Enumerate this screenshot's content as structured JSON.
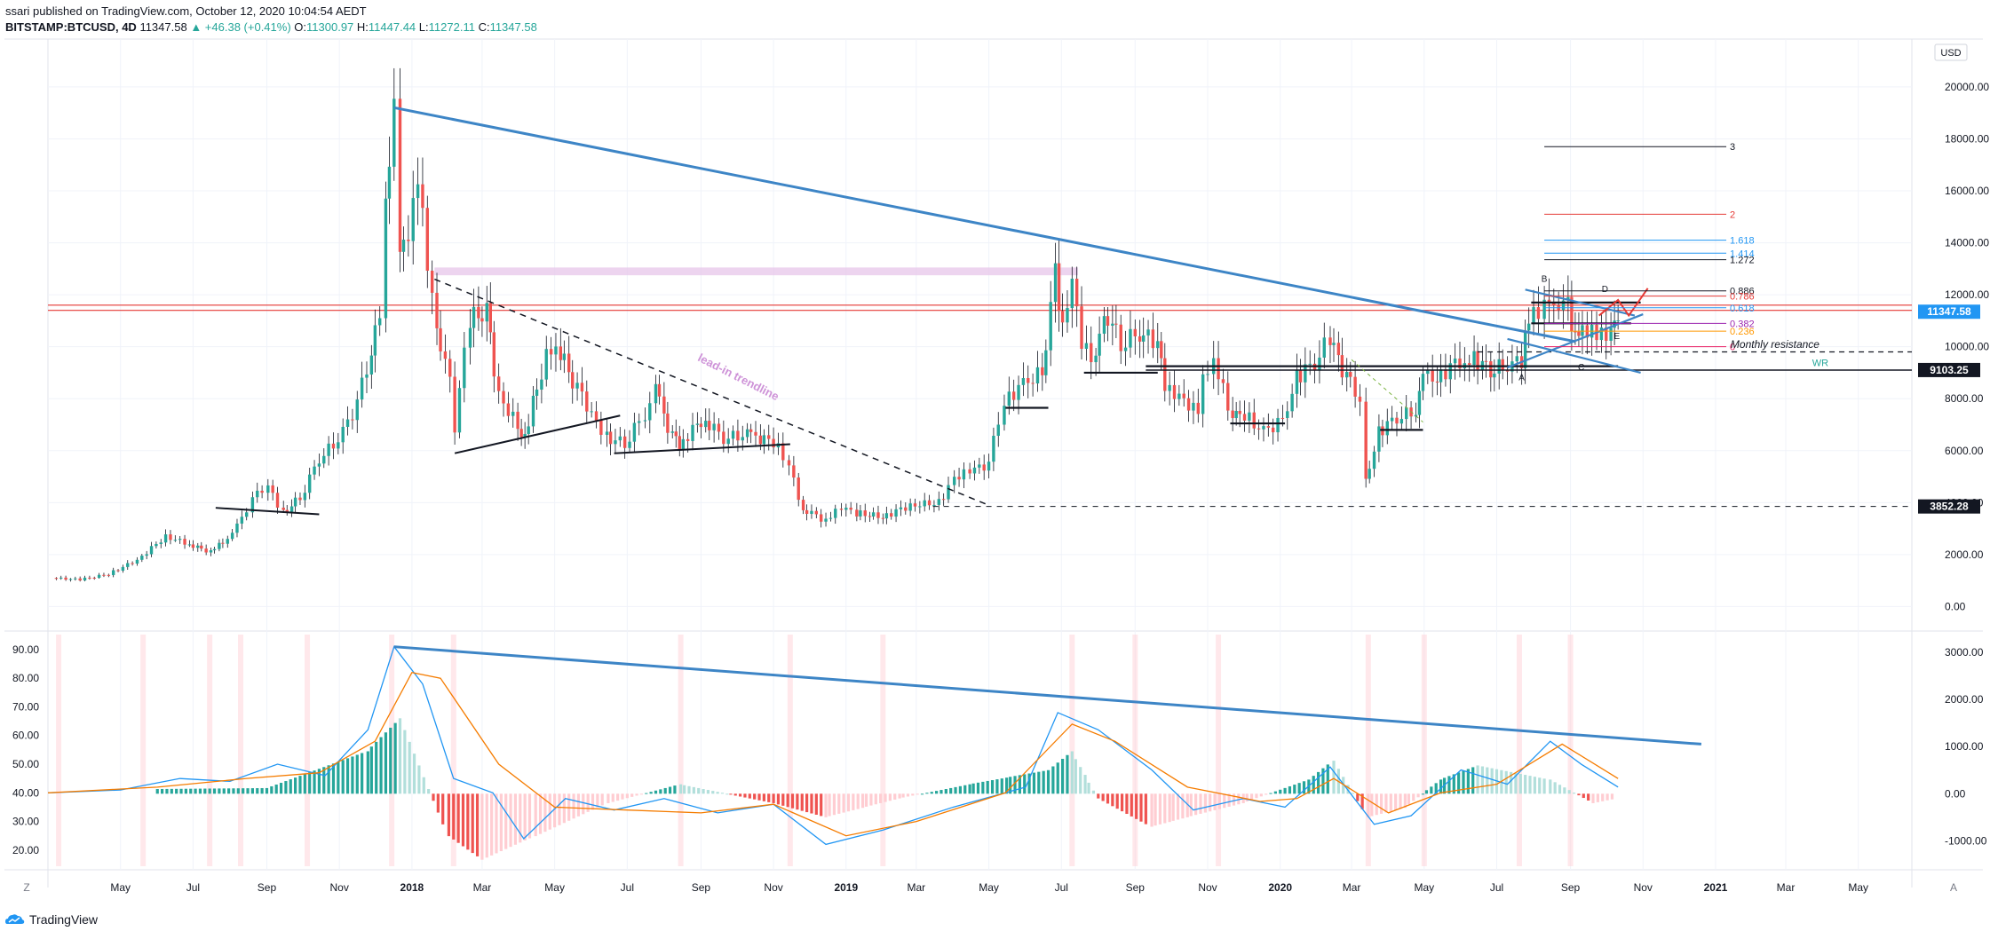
{
  "header": {
    "publisher_line": "ssari published on TradingView.com, October 12, 2020 10:04:54 AEDT",
    "symbol": "BITSTAMP:BTCUSD, 4D",
    "last_price": "11347.58",
    "change": "▲ +46.38 (+0.41%)",
    "o_label": "O:",
    "o": "11300.97",
    "h_label": "H:",
    "h": "11447.44",
    "l_label": "L:",
    "l": "11272.11",
    "c_label": "C:",
    "c": "11347.58"
  },
  "currency_badge": "USD",
  "footer": {
    "brand": "TradingView",
    "left_button": "Z",
    "right_button": "A"
  },
  "colors": {
    "up": "#26a69a",
    "down": "#ef5350",
    "trendline": "#3d85c6",
    "resistance": "#e53935",
    "pink_zone": "#e7c6ea",
    "price_badge": "#2196f3",
    "rsi_line": "#2196f3",
    "rsi_signal": "#f57c00",
    "hist_up_strong": "#26a69a",
    "hist_up_weak": "#b2dfdb",
    "hist_down_strong": "#ef5350",
    "hist_down_weak": "#ffcdd2"
  },
  "chart_data": [
    {
      "type": "candlestick",
      "title": "",
      "xlabel": "",
      "ylabel": "",
      "x_tick_labels": [
        "May",
        "Jul",
        "Sep",
        "Nov",
        "2018",
        "Mar",
        "May",
        "Jul",
        "Sep",
        "Nov",
        "2019",
        "Mar",
        "May",
        "Jul",
        "Sep",
        "Nov",
        "2020",
        "Mar",
        "May",
        "Jul",
        "Sep",
        "Nov",
        "2021",
        "Mar",
        "May"
      ],
      "x_ticks": [
        "2017-05-01",
        "2017-07-01",
        "2017-09-01",
        "2017-11-01",
        "2018-01-01",
        "2018-03-01",
        "2018-05-01",
        "2018-07-01",
        "2018-09-01",
        "2018-11-01",
        "2019-01-01",
        "2019-03-01",
        "2019-05-01",
        "2019-07-01",
        "2019-09-01",
        "2019-11-01",
        "2020-01-01",
        "2020-03-01",
        "2020-05-01",
        "2020-07-01",
        "2020-09-01",
        "2020-11-01",
        "2021-01-01",
        "2021-03-01",
        "2021-05-01"
      ],
      "xlim": [
        "2017-03-01",
        "2021-06-15"
      ],
      "y_tick_labels": [
        "0.00",
        "2000.00",
        "4000.00",
        "6000.00",
        "8000.00",
        "10000.00",
        "12000.00",
        "14000.00",
        "16000.00",
        "18000.00",
        "20000.00"
      ],
      "y_ticks": [
        0,
        2000,
        4000,
        6000,
        8000,
        10000,
        12000,
        14000,
        16000,
        18000,
        20000
      ],
      "ylim": [
        -600,
        21500
      ],
      "price_series": [
        [
          "2017-03-04",
          1100
        ],
        [
          "2017-03-28",
          1040
        ],
        [
          "2017-04-21",
          1250
        ],
        [
          "2017-05-15",
          1800
        ],
        [
          "2017-06-08",
          2700
        ],
        [
          "2017-06-28",
          2400
        ],
        [
          "2017-07-16",
          2100
        ],
        [
          "2017-08-03",
          2750
        ],
        [
          "2017-08-20",
          4100
        ],
        [
          "2017-09-02",
          4700
        ],
        [
          "2017-09-15",
          3600
        ],
        [
          "2017-09-29",
          4200
        ],
        [
          "2017-10-15",
          5700
        ],
        [
          "2017-10-31",
          6400
        ],
        [
          "2017-11-16",
          7800
        ],
        [
          "2017-11-28",
          9800
        ],
        [
          "2017-12-05",
          11500
        ],
        [
          "2017-12-10",
          16000
        ],
        [
          "2017-12-17",
          19200
        ],
        [
          "2017-12-22",
          14000
        ],
        [
          "2017-12-29",
          13800
        ],
        [
          "2018-01-06",
          16500
        ],
        [
          "2018-01-14",
          13500
        ],
        [
          "2018-01-22",
          11000
        ],
        [
          "2018-02-02",
          8600
        ],
        [
          "2018-02-06",
          6900
        ],
        [
          "2018-02-19",
          11100
        ],
        [
          "2018-03-05",
          11300
        ],
        [
          "2018-03-15",
          8200
        ],
        [
          "2018-03-31",
          6900
        ],
        [
          "2018-04-06",
          6600
        ],
        [
          "2018-04-24",
          9600
        ],
        [
          "2018-05-06",
          9800
        ],
        [
          "2018-05-20",
          8300
        ],
        [
          "2018-06-01",
          7500
        ],
        [
          "2018-06-14",
          6500
        ],
        [
          "2018-06-29",
          6300
        ],
        [
          "2018-07-16",
          7400
        ],
        [
          "2018-07-25",
          8300
        ],
        [
          "2018-08-08",
          6500
        ],
        [
          "2018-08-14",
          6200
        ],
        [
          "2018-08-29",
          7000
        ],
        [
          "2018-09-05",
          7200
        ],
        [
          "2018-09-20",
          6500
        ],
        [
          "2018-10-10",
          6600
        ],
        [
          "2018-11-01",
          6350
        ],
        [
          "2018-11-14",
          5500
        ],
        [
          "2018-11-22",
          4300
        ],
        [
          "2018-11-26",
          3800
        ],
        [
          "2018-12-15",
          3300
        ],
        [
          "2018-12-28",
          3800
        ],
        [
          "2019-01-10",
          3600
        ],
        [
          "2019-02-01",
          3450
        ],
        [
          "2019-02-24",
          3900
        ],
        [
          "2019-03-20",
          4000
        ],
        [
          "2019-04-02",
          4900
        ],
        [
          "2019-04-15",
          5200
        ],
        [
          "2019-05-01",
          5500
        ],
        [
          "2019-05-14",
          7900
        ],
        [
          "2019-05-30",
          8600
        ],
        [
          "2019-06-15",
          9000
        ],
        [
          "2019-06-26",
          12900
        ],
        [
          "2019-07-02",
          10500
        ],
        [
          "2019-07-10",
          12300
        ],
        [
          "2019-07-18",
          10000
        ],
        [
          "2019-07-30",
          9600
        ],
        [
          "2019-08-06",
          11500
        ],
        [
          "2019-08-20",
          10200
        ],
        [
          "2019-09-05",
          10500
        ],
        [
          "2019-09-20",
          10200
        ],
        [
          "2019-09-26",
          8300
        ],
        [
          "2019-10-08",
          8200
        ],
        [
          "2019-10-24",
          7400
        ],
        [
          "2019-10-28",
          9200
        ],
        [
          "2019-11-06",
          9300
        ],
        [
          "2019-11-22",
          7300
        ],
        [
          "2019-12-02",
          7400
        ],
        [
          "2019-12-18",
          6700
        ],
        [
          "2020-01-03",
          7200
        ],
        [
          "2020-01-15",
          8800
        ],
        [
          "2020-01-30",
          9400
        ],
        [
          "2020-02-12",
          10300
        ],
        [
          "2020-02-26",
          8800
        ],
        [
          "2020-03-08",
          8000
        ],
        [
          "2020-03-13",
          4800
        ],
        [
          "2020-03-24",
          6700
        ],
        [
          "2020-04-08",
          7300
        ],
        [
          "2020-04-24",
          7500
        ],
        [
          "2020-04-30",
          8800
        ],
        [
          "2020-05-12",
          8800
        ],
        [
          "2020-05-31",
          9500
        ],
        [
          "2020-06-12",
          9500
        ],
        [
          "2020-06-26",
          9150
        ],
        [
          "2020-07-10",
          9250
        ],
        [
          "2020-07-22",
          9500
        ],
        [
          "2020-07-28",
          11000
        ],
        [
          "2020-08-10",
          11700
        ],
        [
          "2020-08-18",
          11900
        ],
        [
          "2020-08-30",
          11600
        ],
        [
          "2020-09-05",
          10200
        ],
        [
          "2020-09-15",
          10700
        ],
        [
          "2020-09-23",
          10300
        ],
        [
          "2020-10-05",
          10700
        ],
        [
          "2020-10-11",
          11347.58
        ]
      ],
      "horizontal_levels": [
        {
          "label": "11347.58",
          "value": 11347.58
        },
        {
          "label": "9103.25",
          "value": 9103.25
        },
        {
          "label": "3852.28",
          "value": 3852.28
        }
      ],
      "annotations": [
        {
          "text": "lead-in trendline"
        },
        {
          "text": "Monthly resistance"
        },
        {
          "text": "WR"
        },
        {
          "text": "A"
        },
        {
          "text": "B"
        },
        {
          "text": "C"
        },
        {
          "text": "D"
        },
        {
          "text": "E"
        }
      ],
      "fib_levels": [
        {
          "label": "3",
          "value": 17700
        },
        {
          "label": "2",
          "value": 15100
        },
        {
          "label": "1.618",
          "value": 14100
        },
        {
          "label": "1.414",
          "value": 13600
        },
        {
          "label": "1.272",
          "value": 13350
        },
        {
          "label": "0.886",
          "value": 12150
        },
        {
          "label": "0.786",
          "value": 11950
        },
        {
          "label": "0.618",
          "value": 11500
        },
        {
          "label": "0.382",
          "value": 10900
        },
        {
          "label": "0.236",
          "value": 10600
        },
        {
          "label": "0",
          "value": 10000
        }
      ]
    },
    {
      "type": "line",
      "title": "",
      "left_y_tick_labels": [
        "20.00",
        "30.00",
        "40.00",
        "50.00",
        "60.00",
        "70.00",
        "80.00",
        "90.00"
      ],
      "left_y_ticks": [
        20,
        30,
        40,
        50,
        60,
        70,
        80,
        90
      ],
      "left_ylim": [
        15,
        94
      ],
      "right_y_tick_labels": [
        "-1000.00",
        "0.00",
        "1000.00",
        "2000.00",
        "3000.00"
      ],
      "right_y_ticks": [
        -1000,
        0,
        1000,
        2000,
        3000
      ],
      "right_ylim": [
        -1500,
        3300
      ],
      "series": [
        {
          "values": [
            [
              "2017-03-01",
              40
            ],
            [
              "2017-05-01",
              41
            ],
            [
              "2017-06-20",
              45
            ],
            [
              "2017-08-01",
              44
            ],
            [
              "2017-09-10",
              50
            ],
            [
              "2017-10-20",
              46
            ],
            [
              "2017-11-25",
              62
            ],
            [
              "2017-12-17",
              91
            ],
            [
              "2018-01-10",
              78
            ],
            [
              "2018-02-05",
              45
            ],
            [
              "2018-03-10",
              40
            ],
            [
              "2018-04-05",
              24
            ],
            [
              "2018-05-10",
              38
            ],
            [
              "2018-06-20",
              34
            ],
            [
              "2018-08-01",
              38
            ],
            [
              "2018-09-15",
              33
            ],
            [
              "2018-11-01",
              36
            ],
            [
              "2018-12-15",
              22
            ],
            [
              "2019-02-01",
              27
            ],
            [
              "2019-04-01",
              35
            ],
            [
              "2019-06-01",
              42
            ],
            [
              "2019-06-28",
              68
            ],
            [
              "2019-08-01",
              62
            ],
            [
              "2019-09-15",
              48
            ],
            [
              "2019-10-20",
              34
            ],
            [
              "2019-12-01",
              38
            ],
            [
              "2020-01-05",
              35
            ],
            [
              "2020-02-12",
              49
            ],
            [
              "2020-03-20",
              29
            ],
            [
              "2020-04-20",
              32
            ],
            [
              "2020-06-01",
              48
            ],
            [
              "2020-07-10",
              43
            ],
            [
              "2020-08-15",
              58
            ],
            [
              "2020-09-10",
              50
            ],
            [
              "2020-10-11",
              42
            ]
          ]
        },
        {
          "values": [
            [
              "2017-03-01",
              40
            ],
            [
              "2017-06-01",
              42
            ],
            [
              "2017-08-15",
              45
            ],
            [
              "2017-10-15",
              47
            ],
            [
              "2017-12-01",
              58
            ],
            [
              "2018-01-01",
              82
            ],
            [
              "2018-01-25",
              80
            ],
            [
              "2018-03-15",
              50
            ],
            [
              "2018-05-01",
              35
            ],
            [
              "2018-07-01",
              34
            ],
            [
              "2018-09-01",
              33
            ],
            [
              "2018-11-01",
              36
            ],
            [
              "2019-01-01",
              25
            ],
            [
              "2019-03-01",
              30
            ],
            [
              "2019-05-15",
              40
            ],
            [
              "2019-07-10",
              64
            ],
            [
              "2019-08-15",
              58
            ],
            [
              "2019-10-15",
              42
            ],
            [
              "2019-12-15",
              37
            ],
            [
              "2020-01-15",
              38
            ],
            [
              "2020-02-15",
              45
            ],
            [
              "2020-04-01",
              33
            ],
            [
              "2020-05-15",
              40
            ],
            [
              "2020-07-01",
              43
            ],
            [
              "2020-08-25",
              57
            ],
            [
              "2020-10-11",
              45
            ]
          ]
        },
        {
          "name": "",
          "type": "bar",
          "values": [
            [
              "2017-06-01",
              100
            ],
            [
              "2017-09-01",
              120
            ],
            [
              "2017-11-25",
              900
            ],
            [
              "2017-12-22",
              1600
            ],
            [
              "2018-02-01",
              -900
            ],
            [
              "2018-03-01",
              -1400
            ],
            [
              "2018-04-15",
              -900
            ],
            [
              "2018-06-15",
              -200
            ],
            [
              "2018-08-15",
              200
            ],
            [
              "2018-11-01",
              -200
            ],
            [
              "2018-12-15",
              -500
            ],
            [
              "2019-02-15",
              -100
            ],
            [
              "2019-04-15",
              200
            ],
            [
              "2019-06-20",
              500
            ],
            [
              "2019-07-10",
              900
            ],
            [
              "2019-08-01",
              -100
            ],
            [
              "2019-09-15",
              -700
            ],
            [
              "2019-10-15",
              -500
            ],
            [
              "2019-12-01",
              -200
            ],
            [
              "2020-01-25",
              300
            ],
            [
              "2020-02-15",
              700
            ],
            [
              "2020-03-15",
              -500
            ],
            [
              "2020-04-15",
              -300
            ],
            [
              "2020-05-15",
              300
            ],
            [
              "2020-06-15",
              600
            ],
            [
              "2020-08-15",
              300
            ],
            [
              "2020-09-20",
              -200
            ],
            [
              "2020-10-11",
              -100
            ]
          ]
        }
      ]
    }
  ]
}
